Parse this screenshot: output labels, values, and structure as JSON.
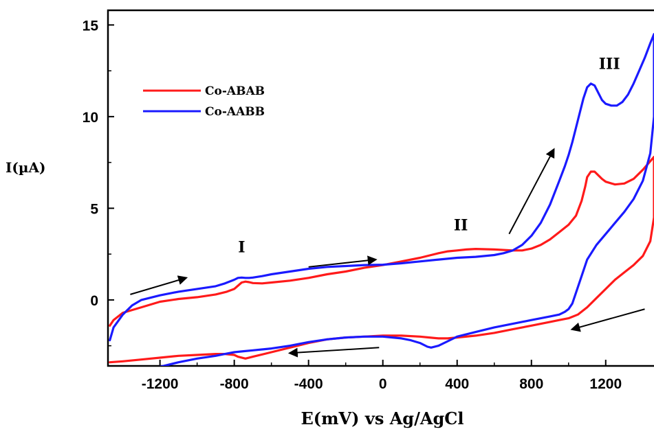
{
  "chart_data": {
    "type": "line",
    "title": "",
    "xlabel": "E(mV) vs Ag/AgCl",
    "ylabel": "I(µA)",
    "xlim": [
      -1480,
      1460
    ],
    "ylim": [
      -3.6,
      15.8
    ],
    "x_ticks": [
      -1200,
      -800,
      -400,
      0,
      400,
      800,
      1200
    ],
    "x_tick_labels": [
      "-1200",
      "-800",
      "-400",
      "0",
      "400",
      "800",
      "1200"
    ],
    "y_ticks": [
      0,
      5,
      10,
      15
    ],
    "y_tick_labels": [
      "0",
      "5",
      "10",
      "15"
    ],
    "grid": false,
    "legend_position": "top-left",
    "annotations": [
      {
        "text": "I",
        "x": -760,
        "y": 2.6
      },
      {
        "text": "II",
        "x": 420,
        "y": 3.8
      },
      {
        "text": "III",
        "x": 1220,
        "y": 12.6
      }
    ],
    "arrows": [
      {
        "from": [
          -1360,
          0.3
        ],
        "to": [
          -1060,
          1.2
        ]
      },
      {
        "from": [
          -400,
          1.8
        ],
        "to": [
          -40,
          2.2
        ]
      },
      {
        "from": [
          680,
          3.6
        ],
        "to": [
          920,
          8.2
        ]
      },
      {
        "from": [
          -20,
          -2.6
        ],
        "to": [
          -500,
          -2.9
        ]
      },
      {
        "from": [
          1410,
          -0.5
        ],
        "to": [
          1020,
          -1.6
        ]
      }
    ],
    "series": [
      {
        "name": "Co-ABAB",
        "color": "#ff1a1a",
        "x": [
          -1470,
          -1450,
          -1400,
          -1300,
          -1200,
          -1100,
          -1000,
          -900,
          -840,
          -800,
          -760,
          -740,
          -720,
          -700,
          -650,
          -600,
          -500,
          -400,
          -300,
          -200,
          -100,
          0,
          100,
          200,
          300,
          350,
          400,
          450,
          500,
          600,
          700,
          750,
          800,
          850,
          900,
          950,
          1000,
          1040,
          1070,
          1090,
          1100,
          1120,
          1140,
          1160,
          1180,
          1200,
          1250,
          1300,
          1350,
          1400,
          1460,
          1460,
          1440,
          1400,
          1350,
          1300,
          1250,
          1200,
          1150,
          1100,
          1050,
          1000,
          950,
          900,
          800,
          700,
          600,
          500,
          400,
          350,
          300,
          250,
          200,
          100,
          0,
          -100,
          -200,
          -300,
          -400,
          -500,
          -600,
          -700,
          -740,
          -780,
          -800,
          -850,
          -900,
          -1000,
          -1100,
          -1200,
          -1300,
          -1400,
          -1470
        ],
        "y": [
          -1.4,
          -1.1,
          -0.7,
          -0.4,
          -0.1,
          0.05,
          0.15,
          0.3,
          0.45,
          0.6,
          0.95,
          1.0,
          0.97,
          0.92,
          0.9,
          0.95,
          1.05,
          1.2,
          1.4,
          1.55,
          1.75,
          1.9,
          2.1,
          2.3,
          2.55,
          2.65,
          2.7,
          2.75,
          2.78,
          2.75,
          2.7,
          2.7,
          2.8,
          3.0,
          3.3,
          3.7,
          4.1,
          4.6,
          5.4,
          6.2,
          6.7,
          7.0,
          7.0,
          6.8,
          6.6,
          6.45,
          6.3,
          6.35,
          6.6,
          7.1,
          7.8,
          4.5,
          3.2,
          2.4,
          1.9,
          1.5,
          1.1,
          0.6,
          0.1,
          -0.4,
          -0.8,
          -1.0,
          -1.1,
          -1.2,
          -1.4,
          -1.6,
          -1.8,
          -1.95,
          -2.05,
          -2.1,
          -2.1,
          -2.05,
          -2.0,
          -1.95,
          -1.95,
          -2.0,
          -2.05,
          -2.15,
          -2.35,
          -2.6,
          -2.85,
          -3.1,
          -3.2,
          -3.1,
          -3.0,
          -2.95,
          -2.95,
          -3.0,
          -3.05,
          -3.15,
          -3.25,
          -3.35,
          -3.4
        ]
      },
      {
        "name": "Co-AABB",
        "color": "#1a1aff",
        "x": [
          -1470,
          -1450,
          -1400,
          -1350,
          -1300,
          -1200,
          -1100,
          -1000,
          -900,
          -850,
          -800,
          -780,
          -760,
          -740,
          -720,
          -700,
          -650,
          -600,
          -500,
          -400,
          -300,
          -200,
          -100,
          0,
          100,
          200,
          300,
          400,
          500,
          600,
          650,
          700,
          750,
          800,
          850,
          900,
          950,
          980,
          1000,
          1020,
          1040,
          1060,
          1080,
          1100,
          1120,
          1140,
          1160,
          1180,
          1200,
          1230,
          1260,
          1290,
          1320,
          1350,
          1380,
          1410,
          1440,
          1460,
          1460,
          1440,
          1400,
          1350,
          1300,
          1250,
          1200,
          1150,
          1100,
          1070,
          1040,
          1020,
          1000,
          980,
          950,
          900,
          800,
          700,
          600,
          500,
          400,
          350,
          300,
          260,
          240,
          200,
          150,
          100,
          0,
          -100,
          -200,
          -300,
          -400,
          -500,
          -600,
          -700,
          -750,
          -800,
          -850,
          -900,
          -1000,
          -1100,
          -1200,
          -1300,
          -1400,
          -1440
        ],
        "y": [
          -2.2,
          -1.5,
          -0.8,
          -0.3,
          0.0,
          0.25,
          0.45,
          0.6,
          0.75,
          0.9,
          1.1,
          1.2,
          1.22,
          1.2,
          1.2,
          1.22,
          1.3,
          1.4,
          1.55,
          1.7,
          1.8,
          1.85,
          1.9,
          1.92,
          2.0,
          2.1,
          2.2,
          2.3,
          2.35,
          2.45,
          2.55,
          2.7,
          3.0,
          3.5,
          4.2,
          5.2,
          6.5,
          7.3,
          7.9,
          8.6,
          9.4,
          10.2,
          11.0,
          11.6,
          11.8,
          11.7,
          11.3,
          10.9,
          10.7,
          10.6,
          10.6,
          10.8,
          11.2,
          11.8,
          12.5,
          13.2,
          14.0,
          14.5,
          10.0,
          8.0,
          6.5,
          5.5,
          4.8,
          4.2,
          3.6,
          3.0,
          2.2,
          1.3,
          0.4,
          -0.2,
          -0.5,
          -0.65,
          -0.8,
          -0.9,
          -1.1,
          -1.3,
          -1.5,
          -1.75,
          -2.0,
          -2.25,
          -2.5,
          -2.6,
          -2.55,
          -2.35,
          -2.2,
          -2.1,
          -2.0,
          -2.0,
          -2.05,
          -2.15,
          -2.3,
          -2.5,
          -2.65,
          -2.75,
          -2.8,
          -2.85,
          -2.95,
          -3.05,
          -3.2,
          -3.4,
          -3.65,
          -3.9,
          -4.1,
          -4.2
        ]
      }
    ]
  }
}
